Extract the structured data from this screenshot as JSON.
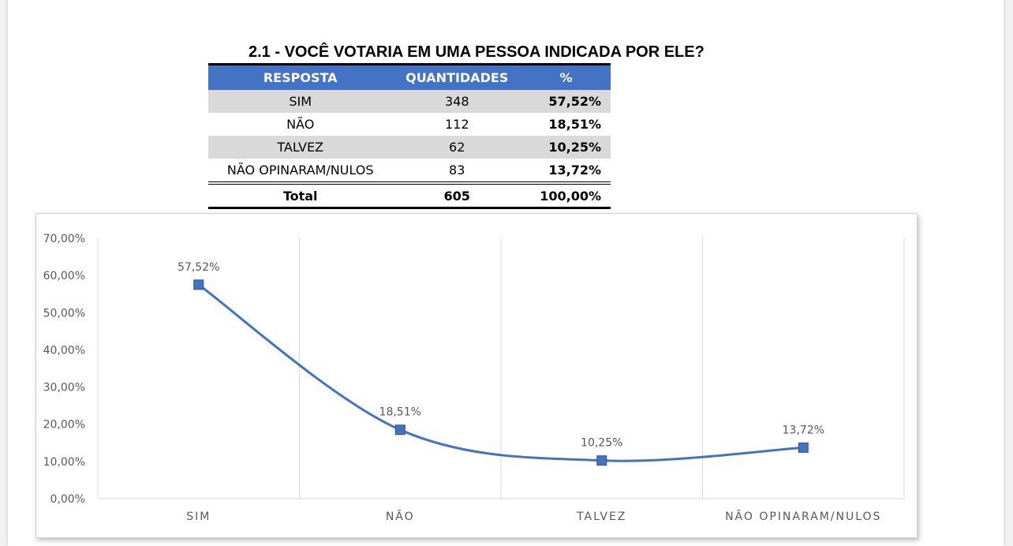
{
  "page_title": "2.1 - VOCÊ VOTARIA EM UMA PESSOA INDICADA POR ELE?",
  "table": {
    "headers": [
      "RESPOSTA",
      "QUANTIDADES",
      "%"
    ],
    "rows": [
      {
        "resposta": "SIM",
        "quantidade": "348",
        "pct": "57,52%"
      },
      {
        "resposta": "NÃO",
        "quantidade": "112",
        "pct": "18,51%"
      },
      {
        "resposta": "TALVEZ",
        "quantidade": "62",
        "pct": "10,25%"
      },
      {
        "resposta": "NÃO OPINARAM/NULOS",
        "quantidade": "83",
        "pct": "13,72%"
      }
    ],
    "total": {
      "label": "Total",
      "quantidade": "605",
      "pct": "100,00%"
    },
    "header_color": "#4472c4",
    "shade_color": "#d9d9d9"
  },
  "chart_data": {
    "type": "line",
    "smooth": true,
    "categories": [
      "SIM",
      "NÃO",
      "TALVEZ",
      "NÃO OPINARAM/NULOS"
    ],
    "values": [
      57.52,
      18.51,
      10.25,
      13.72
    ],
    "data_labels": [
      "57,52%",
      "18,51%",
      "10,25%",
      "13,72%"
    ],
    "ylim": [
      0,
      70
    ],
    "yticks": [
      0,
      10,
      20,
      30,
      40,
      50,
      60,
      70
    ],
    "ytick_labels": [
      "0,00%",
      "10,00%",
      "20,00%",
      "30,00%",
      "40,00%",
      "50,00%",
      "60,00%",
      "70,00%"
    ],
    "grid": "vertical",
    "marker": "square",
    "line_color": "#4472c4",
    "legend": "none"
  }
}
